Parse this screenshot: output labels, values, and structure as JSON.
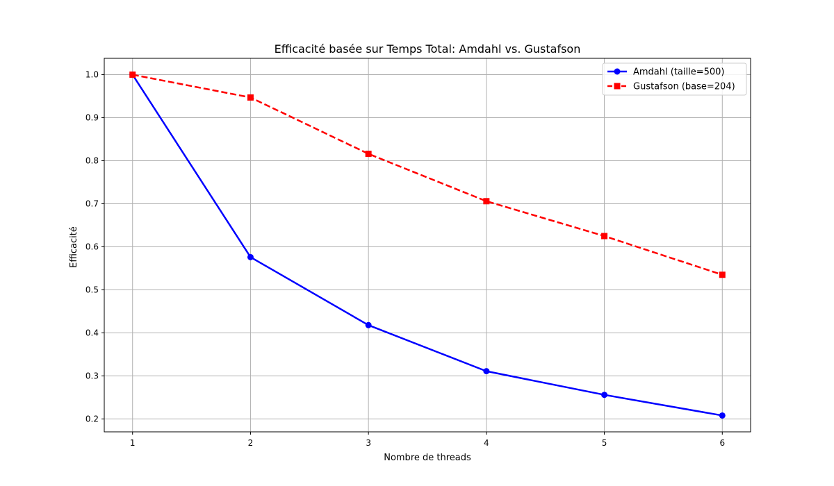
{
  "chart_data": {
    "type": "line",
    "title": "Efficacité basée sur Temps Total: Amdahl vs. Gustafson",
    "xlabel": "Nombre de threads",
    "ylabel": "Efficacité",
    "x": [
      1,
      2,
      3,
      4,
      5,
      6
    ],
    "xticks": [
      "1",
      "2",
      "3",
      "4",
      "5",
      "6"
    ],
    "yticks": [
      "0.2",
      "0.3",
      "0.4",
      "0.5",
      "0.6",
      "0.7",
      "0.8",
      "0.9",
      "1.0"
    ],
    "xlim": [
      0.76,
      6.24
    ],
    "ylim": [
      0.17,
      1.038
    ],
    "grid": true,
    "legend_position": "top-right",
    "series": [
      {
        "name": "Amdahl (taille=500)",
        "values": [
          1.0,
          0.576,
          0.418,
          0.311,
          0.256,
          0.208
        ],
        "color": "#0000ff",
        "marker": "circle",
        "linestyle": "solid"
      },
      {
        "name": "Gustafson (base=204)",
        "values": [
          1.0,
          0.947,
          0.816,
          0.706,
          0.625,
          0.535
        ],
        "color": "#ff0000",
        "marker": "square",
        "linestyle": "dashed"
      }
    ]
  }
}
